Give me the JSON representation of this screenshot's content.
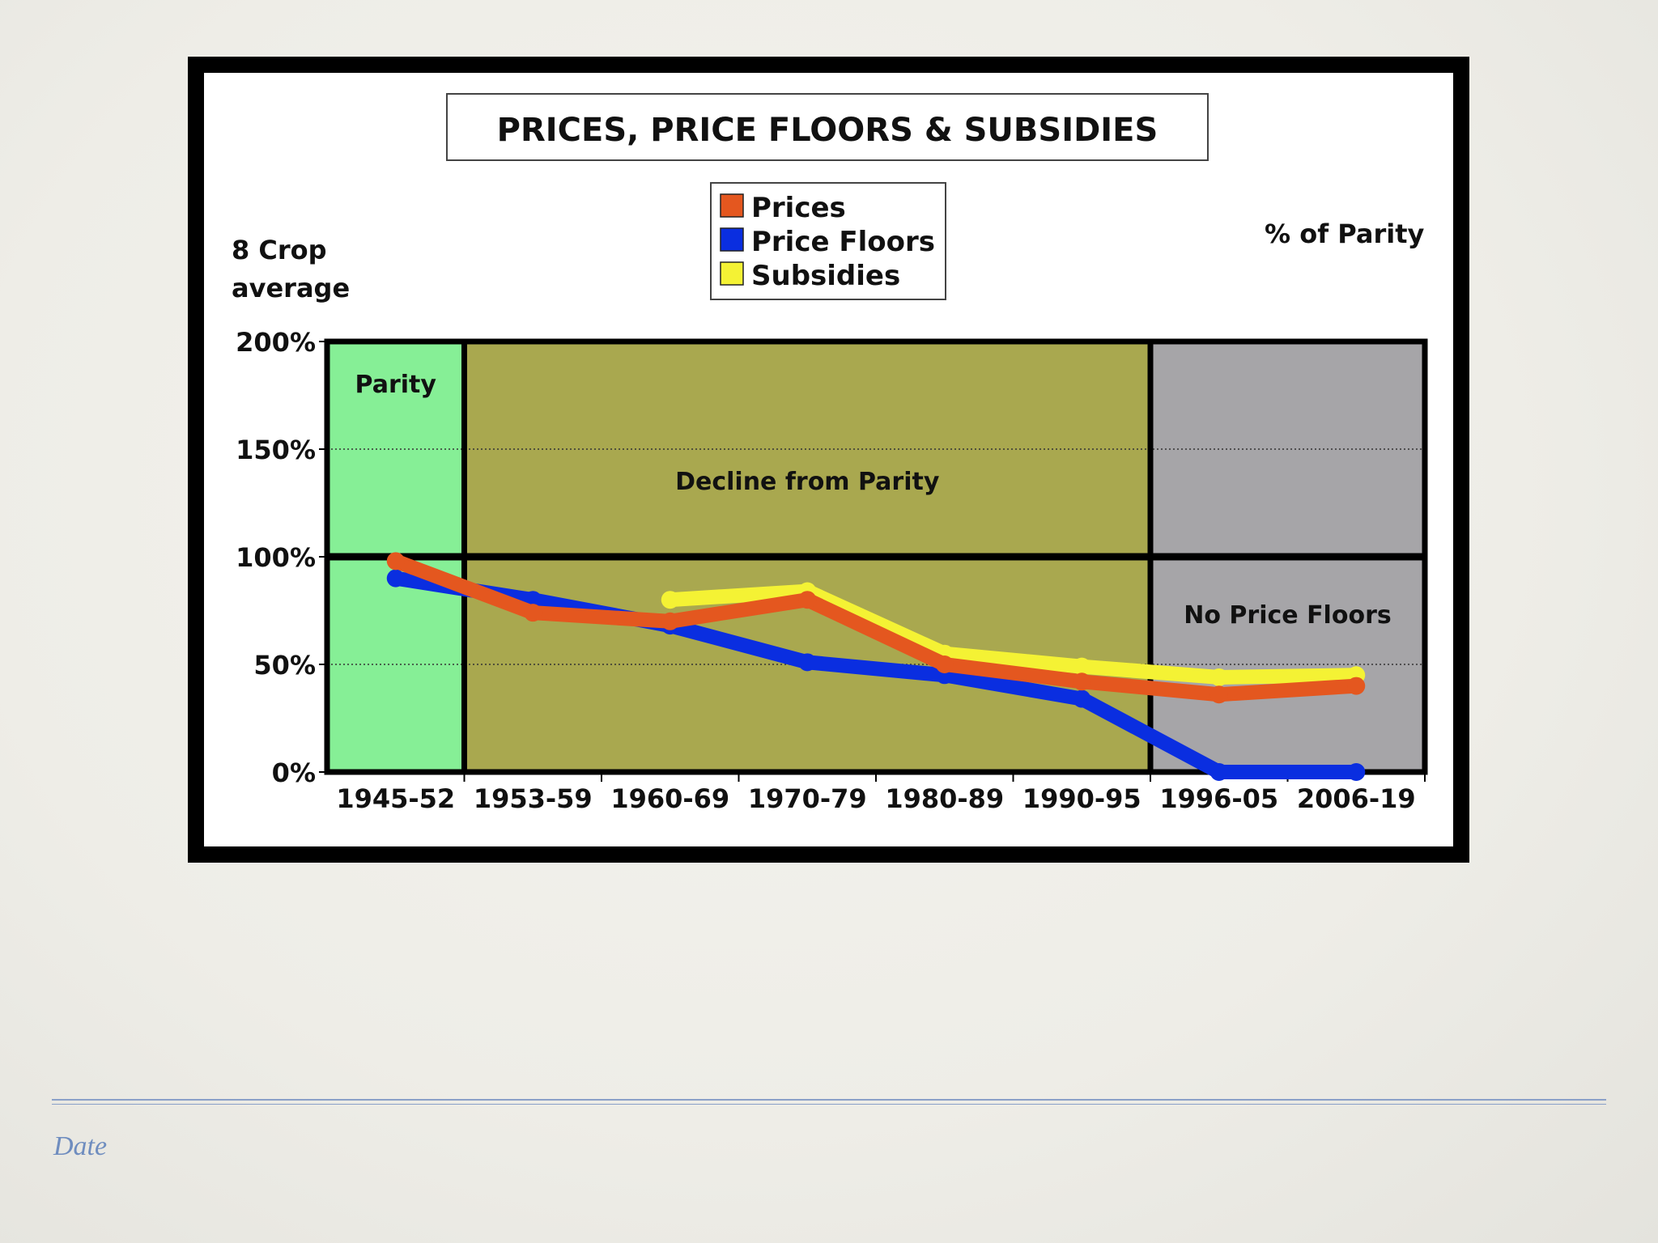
{
  "slide": {
    "footer_label": "Date"
  },
  "chart_data": {
    "type": "line",
    "title": "PRICES, PRICE FLOORS & SUBSIDIES",
    "ylabel": [
      "8 Crop",
      "average"
    ],
    "yunit_label": "% of Parity",
    "categories": [
      "1945-52",
      "1953-59",
      "1960-69",
      "1970-79",
      "1980-89",
      "1990-95",
      "1996-05",
      "2006-19"
    ],
    "yticks": [
      "0%",
      "50%",
      "100%",
      "150%",
      "200%"
    ],
    "ylim": [
      0,
      200
    ],
    "regions": [
      {
        "label": "Parity",
        "from": "1945-52",
        "to": "1945-52",
        "color": "#86ef96"
      },
      {
        "label": "Decline from Parity",
        "from": "1953-59",
        "to": "1990-95",
        "color": "#a9a84f"
      },
      {
        "label": "No Price Floors",
        "from": "1996-05",
        "to": "2006-19",
        "color": "#a6a5a8"
      }
    ],
    "series": [
      {
        "name": "Price Floors",
        "color": "#0a2ee0",
        "values": [
          90,
          80,
          68,
          51,
          45,
          34,
          0,
          0
        ]
      },
      {
        "name": "Subsidies",
        "color": "#f4f234",
        "values": [
          null,
          null,
          80,
          84,
          55,
          49,
          44,
          45
        ]
      },
      {
        "name": "Prices",
        "color": "#e4571f",
        "values": [
          98,
          74,
          70,
          80,
          50,
          42,
          36,
          40
        ]
      }
    ],
    "legend_order": [
      "Prices",
      "Price Floors",
      "Subsidies"
    ],
    "legend_position": "top-center",
    "grid": true
  }
}
